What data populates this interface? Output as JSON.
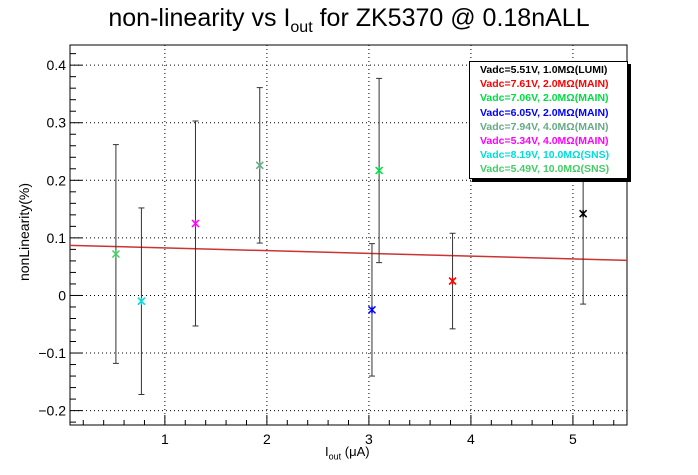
{
  "title": {
    "prefix": "non-linearity vs I",
    "sub": "out",
    "suffix": " for ZK5370 @ 0.18nALL"
  },
  "axes": {
    "xlabel_prefix": "I",
    "xlabel_sub": "out",
    "xlabel_suffix": " (μA)",
    "ylabel": "nonLinearity(%)"
  },
  "legend": [
    {
      "label": "Vadc=5.51V, 1.0MΩ(LUMI)",
      "color": "#000000"
    },
    {
      "label": "Vadc=7.61V, 2.0MΩ(MAIN)",
      "color": "#ff0000"
    },
    {
      "label": "Vadc=7.06V, 2.0MΩ(MAIN)",
      "color": "#00dd44"
    },
    {
      "label": "Vadc=6.05V, 2.0MΩ(MAIN)",
      "color": "#0000ff"
    },
    {
      "label": "Vadc=7.94V, 4.0MΩ(MAIN)",
      "color": "#66aa88"
    },
    {
      "label": "Vadc=5.34V, 4.0MΩ(MAIN)",
      "color": "#ff00ff"
    },
    {
      "label": "Vadc=8.19V, 10.0MΩ(SNS)",
      "color": "#00dddd"
    },
    {
      "label": "Vadc=5.49V, 10.0MΩ(SNS)",
      "color": "#44cc66"
    }
  ],
  "chart_data": {
    "type": "scatter",
    "title": "non-linearity vs Iout for ZK5370 @ 0.18nALL",
    "xlabel": "Iout (μA)",
    "ylabel": "nonLinearity(%)",
    "xlim": [
      0.07,
      5.53
    ],
    "ylim": [
      -0.225,
      0.435
    ],
    "x_ticks": [
      1,
      2,
      3,
      4,
      5
    ],
    "y_ticks": [
      -0.2,
      -0.1,
      0,
      0.1,
      0.2,
      0.3,
      0.4
    ],
    "grid": true,
    "legend_position": "top-right",
    "series": [
      {
        "name": "Vadc=5.51V, 1.0MΩ(LUMI)",
        "color": "#000000",
        "points": [
          {
            "x": 5.1,
            "y": 0.142,
            "err": 0.157
          }
        ]
      },
      {
        "name": "Vadc=7.61V, 2.0MΩ(MAIN)",
        "color": "#ff0000",
        "points": [
          {
            "x": 3.82,
            "y": 0.025,
            "err": 0.083
          }
        ]
      },
      {
        "name": "Vadc=7.06V, 2.0MΩ(MAIN)",
        "color": "#00dd44",
        "points": [
          {
            "x": 3.1,
            "y": 0.217,
            "err": 0.16
          }
        ]
      },
      {
        "name": "Vadc=6.05V, 2.0MΩ(MAIN)",
        "color": "#0000ff",
        "points": [
          {
            "x": 3.03,
            "y": -0.025,
            "err": 0.115
          }
        ]
      },
      {
        "name": "Vadc=7.94V, 4.0MΩ(MAIN)",
        "color": "#66aa88",
        "points": [
          {
            "x": 1.93,
            "y": 0.226,
            "err": 0.135
          }
        ]
      },
      {
        "name": "Vadc=5.34V, 4.0MΩ(MAIN)",
        "color": "#ff00ff",
        "points": [
          {
            "x": 1.3,
            "y": 0.125,
            "err": 0.178
          }
        ]
      },
      {
        "name": "Vadc=8.19V, 10.0MΩ(SNS)",
        "color": "#00dddd",
        "points": [
          {
            "x": 0.77,
            "y": -0.01,
            "err": 0.162
          }
        ]
      },
      {
        "name": "Vadc=5.49V, 10.0MΩ(SNS)",
        "color": "#44cc66",
        "points": [
          {
            "x": 0.52,
            "y": 0.072,
            "err": 0.19
          }
        ]
      }
    ],
    "fit": {
      "color": "#cc3333",
      "x": [
        0.07,
        5.53
      ],
      "y": [
        0.087,
        0.061
      ]
    }
  }
}
